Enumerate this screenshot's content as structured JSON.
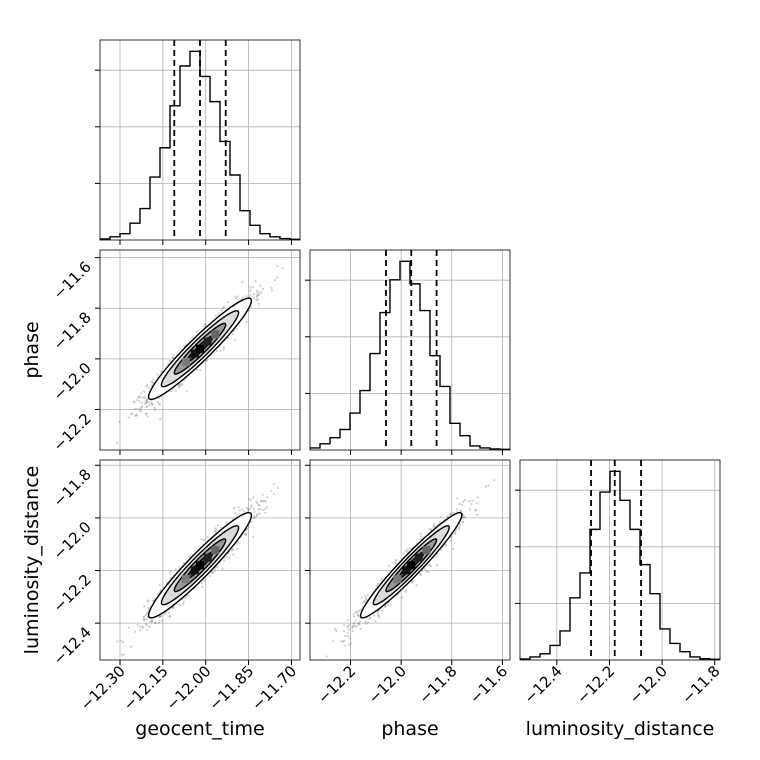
{
  "chart_data": {
    "type": "corner",
    "parameters": [
      "geocent_time",
      "phase",
      "luminosity_distance"
    ],
    "ranges": {
      "geocent_time": [
        -12.37,
        -11.67
      ],
      "phase": [
        -12.36,
        -11.57
      ],
      "luminosity_distance": [
        -12.54,
        -11.78
      ]
    },
    "x_ticks": {
      "geocent_time": [
        "−12.30",
        "−12.15",
        "−12.00",
        "−11.85",
        "−11.70"
      ],
      "phase": [
        "−12.2",
        "−12.0",
        "−11.8",
        "−11.6"
      ],
      "luminosity_distance": [
        "−12.4",
        "−12.2",
        "−12.0",
        "−11.8"
      ]
    },
    "y_ticks": {
      "phase": [
        "−11.6",
        "−11.8",
        "−12.0",
        "−12.2"
      ],
      "luminosity_distance": [
        "−11.8",
        "−12.0",
        "−12.2",
        "−12.4"
      ]
    },
    "x_tick_values": {
      "geocent_time": [
        -12.3,
        -12.15,
        -12.0,
        -11.85,
        -11.7
      ],
      "phase": [
        -12.2,
        -12.0,
        -11.8,
        -11.6
      ],
      "luminosity_distance": [
        -12.4,
        -12.2,
        -12.0,
        -11.8
      ]
    },
    "y_tick_values": {
      "phase": [
        -11.6,
        -11.8,
        -12.0,
        -12.2
      ],
      "luminosity_distance": [
        -11.8,
        -12.0,
        -12.2,
        -12.4
      ]
    },
    "quantiles": {
      "geocent_time": [
        -12.11,
        -12.02,
        -11.93
      ],
      "phase": [
        -12.06,
        -11.96,
        -11.86
      ],
      "luminosity_distance": [
        -12.27,
        -12.18,
        -12.08
      ]
    },
    "histograms": {
      "geocent_time": {
        "edges": [
          -12.37,
          -12.335,
          -12.3,
          -12.265,
          -12.23,
          -12.195,
          -12.16,
          -12.125,
          -12.09,
          -12.055,
          -12.02,
          -11.985,
          -11.95,
          -11.915,
          -11.88,
          -11.845,
          -11.81,
          -11.775,
          -11.74,
          -11.705,
          -11.67
        ],
        "counts": [
          0.5,
          1.5,
          3,
          8,
          15,
          30,
          44,
          64,
          83,
          90,
          78,
          66,
          47,
          31,
          14,
          7,
          3,
          1.5,
          0.7,
          0.3
        ]
      },
      "phase": {
        "edges": [
          -12.36,
          -12.3205,
          -12.281,
          -12.2415,
          -12.202,
          -12.1625,
          -12.123,
          -12.0835,
          -12.044,
          -12.0045,
          -11.965,
          -11.9255,
          -11.886,
          -11.8465,
          -11.807,
          -11.7675,
          -11.728,
          -11.6885,
          -11.649,
          -11.6095,
          -11.57
        ],
        "counts": [
          1,
          3,
          6,
          10,
          18,
          29,
          47,
          67,
          83,
          92,
          81,
          68,
          46,
          31,
          13,
          7,
          2,
          1,
          0.5,
          0.3
        ]
      },
      "luminosity_distance": {
        "edges": [
          -12.54,
          -12.502,
          -12.464,
          -12.426,
          -12.388,
          -12.35,
          -12.312,
          -12.274,
          -12.236,
          -12.198,
          -12.16,
          -12.122,
          -12.084,
          -12.046,
          -12.008,
          -11.97,
          -11.932,
          -11.894,
          -11.856,
          -11.818,
          -11.78
        ],
        "counts": [
          0.5,
          1.5,
          3,
          7,
          14,
          30,
          42,
          63,
          81,
          91,
          77,
          63,
          46,
          32,
          15,
          8,
          4,
          1.5,
          0.6,
          0.3
        ]
      }
    },
    "correlations": {
      "phase|geocent_time": 0.95,
      "luminosity_distance|geocent_time": 0.95,
      "luminosity_distance|phase": 0.96
    },
    "sigmas": {
      "geocent_time": 0.09,
      "phase": 0.1,
      "luminosity_distance": 0.1
    },
    "centers": {
      "geocent_time": -12.02,
      "phase": -11.96,
      "luminosity_distance": -12.18
    }
  }
}
